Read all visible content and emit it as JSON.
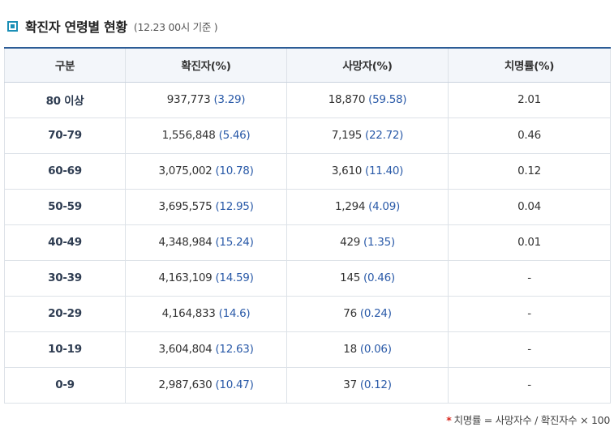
{
  "header": {
    "title": "확진자 연령별 현황",
    "subtitle": "(12.23 00시 기준 )"
  },
  "table": {
    "columns": [
      "구분",
      "확진자(%)",
      "사망자(%)",
      "치명률(%)"
    ],
    "rows": [
      {
        "group": "80 이상",
        "cases": "937,773",
        "cases_pct": "(3.29)",
        "deaths": "18,870",
        "deaths_pct": "(59.58)",
        "fatality": "2.01"
      },
      {
        "group": "70-79",
        "cases": "1,556,848",
        "cases_pct": "(5.46)",
        "deaths": "7,195",
        "deaths_pct": "(22.72)",
        "fatality": "0.46"
      },
      {
        "group": "60-69",
        "cases": "3,075,002",
        "cases_pct": "(10.78)",
        "deaths": "3,610",
        "deaths_pct": "(11.40)",
        "fatality": "0.12"
      },
      {
        "group": "50-59",
        "cases": "3,695,575",
        "cases_pct": "(12.95)",
        "deaths": "1,294",
        "deaths_pct": "(4.09)",
        "fatality": "0.04"
      },
      {
        "group": "40-49",
        "cases": "4,348,984",
        "cases_pct": "(15.24)",
        "deaths": "429",
        "deaths_pct": "(1.35)",
        "fatality": "0.01"
      },
      {
        "group": "30-39",
        "cases": "4,163,109",
        "cases_pct": "(14.59)",
        "deaths": "145",
        "deaths_pct": "(0.46)",
        "fatality": "-"
      },
      {
        "group": "20-29",
        "cases": "4,164,833",
        "cases_pct": "(14.6)",
        "deaths": "76",
        "deaths_pct": "(0.24)",
        "fatality": "-"
      },
      {
        "group": "10-19",
        "cases": "3,604,804",
        "cases_pct": "(12.63)",
        "deaths": "18",
        "deaths_pct": "(0.06)",
        "fatality": "-"
      },
      {
        "group": "0-9",
        "cases": "2,987,630",
        "cases_pct": "(10.47)",
        "deaths": "37",
        "deaths_pct": "(0.12)",
        "fatality": "-"
      }
    ]
  },
  "footnote": {
    "marker": "*",
    "text": "치명률 = 사망자수 / 확진자수 × 100"
  },
  "colors": {
    "accent": "#2c5c96",
    "bullet": "#1b8fb6",
    "value_blue": "#2a5aa8",
    "footnote_star": "#d9261c"
  }
}
